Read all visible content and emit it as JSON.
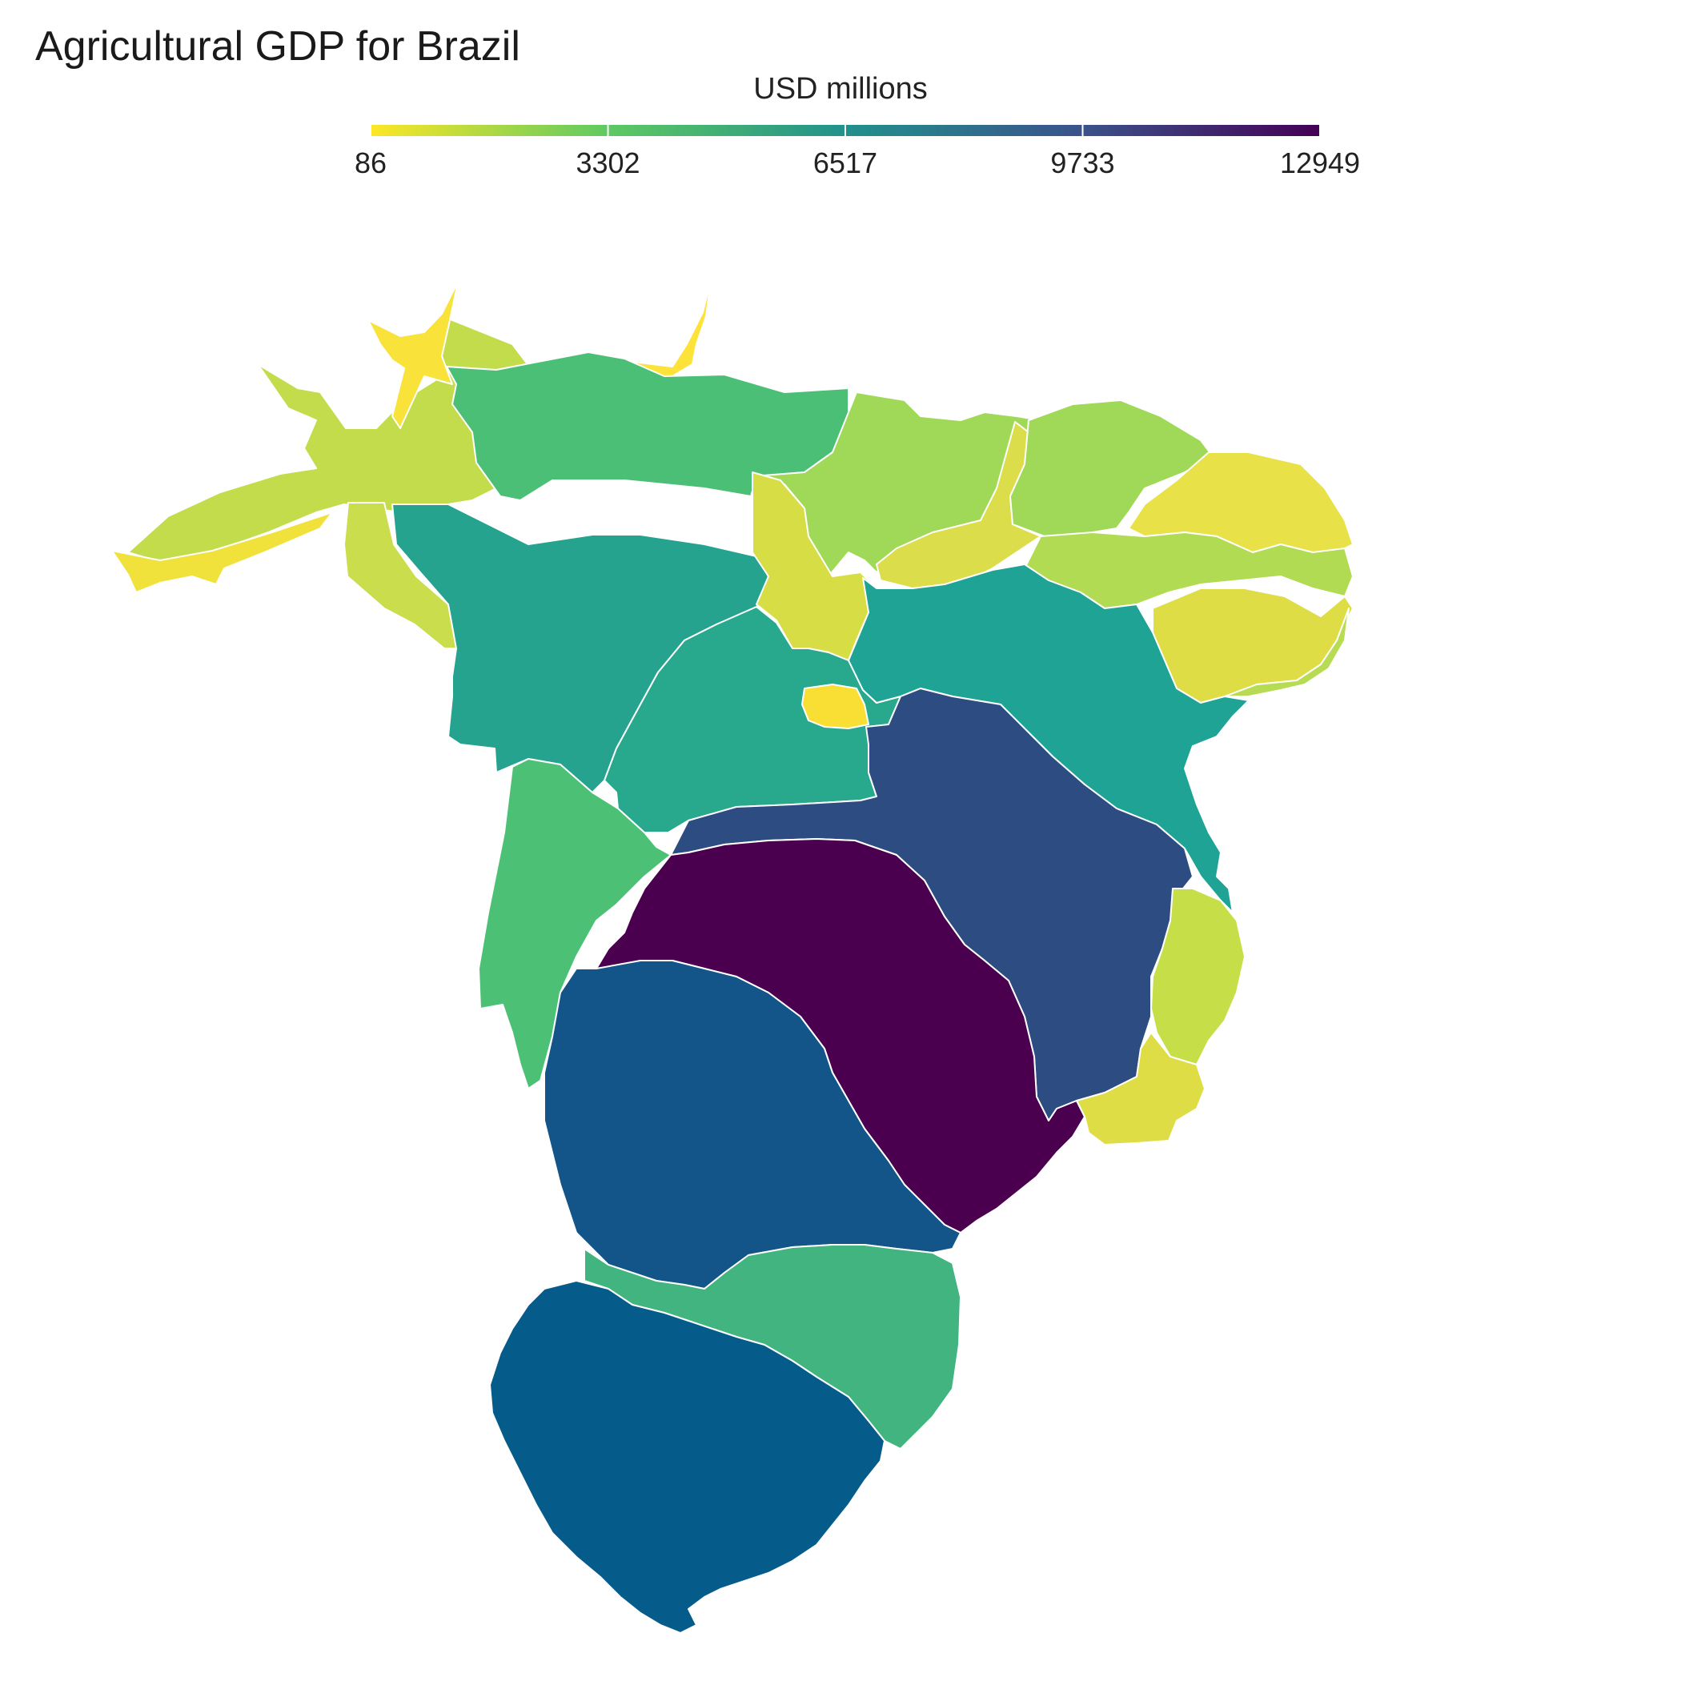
{
  "title": "Agricultural GDP for Brazil",
  "legend": {
    "title": "USD millions",
    "min": 86,
    "max": 12949,
    "ticks": [
      "86",
      "3302",
      "6517",
      "9733",
      "12949"
    ],
    "palette": [
      "#fde725",
      "#5ec962",
      "#21918c",
      "#3b528b",
      "#440154"
    ]
  },
  "chart_data": {
    "type": "choropleth",
    "title": "Agricultural GDP for Brazil",
    "colorbar_label": "USD millions",
    "colorbar_range": [
      86,
      12949
    ],
    "colorbar_ticks": [
      86,
      3302,
      6517,
      9733,
      12949
    ],
    "colormap": "viridis (reversed)",
    "legend_position": "top",
    "regions_color": {
      "far-north-west": "#c2dc4b",
      "south-west-strip": "#f0e13b",
      "north-west-small": "#c9dd4d",
      "north-top-left": "#f9e23a",
      "north-top-right": "#fde23a",
      "north-central": "#4cbf76",
      "north-east-upper": "#9fd957",
      "centre-north-band": "#dcdd4a",
      "east-upper": "#9fd957",
      "east-tip-upper": "#e8e147",
      "east-tip-mid": "#b0db52",
      "east-tip-lower": "#dfdd46",
      "west-central": "#25a38f",
      "central-north-strip": "#d6dd45",
      "central": "#28a88d",
      "small-central": "#f9df34",
      "east-central": "#1ea394",
      "west-lower": "#4cc175",
      "south-east-large": "#2c4c82",
      "centre-south": "#4b004f",
      "east-coast-small": "#c6df49",
      "east-coast-lower": "#dedd45",
      "south-large": "#135589",
      "south-band": "#41b47f",
      "far-south": "#055b8a"
    }
  }
}
